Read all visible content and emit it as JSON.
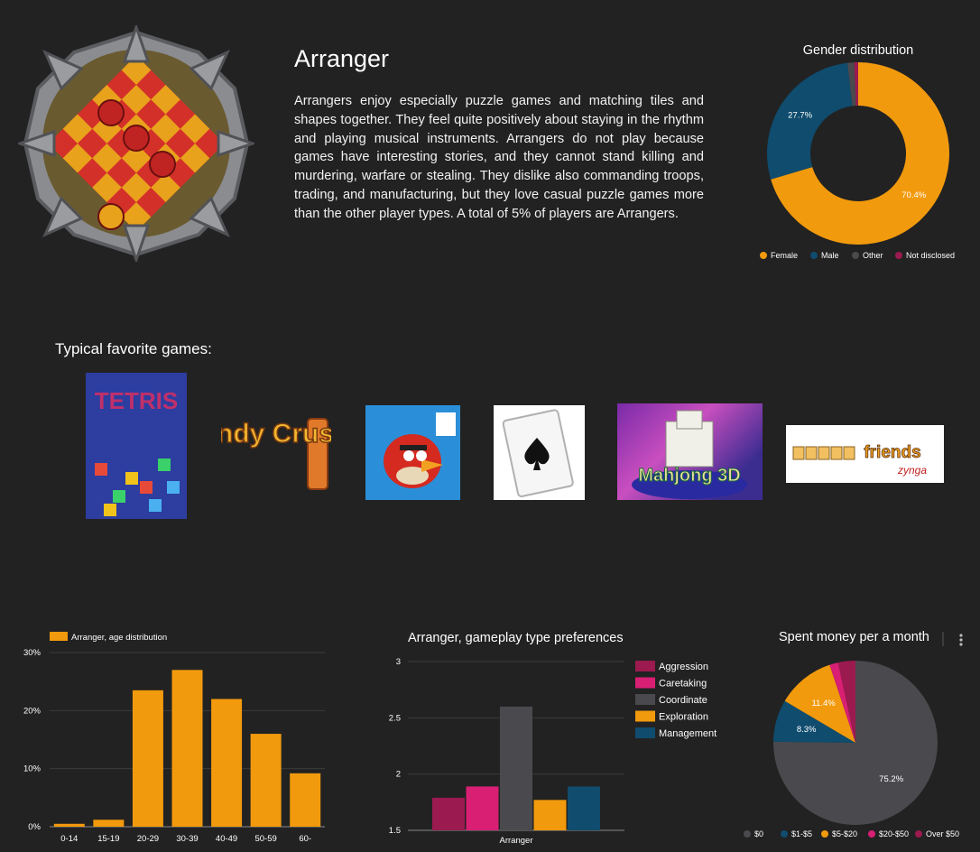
{
  "profile": {
    "name": "Arranger",
    "description": "Arrangers enjoy especially puzzle games and matching tiles and shapes together. They feel quite positively about staying in the rhythm and playing musical instruments. Arrangers do not play because games have interesting stories, and they cannot stand killing and murdering, warfare or stealing. They dislike also commanding troops, trading, and manufacturing, but they love casual puzzle games more than the other player types. A total of 5% of players are Arrangers."
  },
  "favorites": {
    "title": "Typical favorite games:",
    "games": [
      {
        "name": "Tetris",
        "logo_text": "TETRIS"
      },
      {
        "name": "Candy Crush Saga",
        "logo_text": "Candy Crush"
      },
      {
        "name": "Angry Birds",
        "logo_text": ""
      },
      {
        "name": "Solitaire",
        "logo_text": ""
      },
      {
        "name": "Mahjong 3D",
        "logo_text": "Mahjong 3D"
      },
      {
        "name": "Words with Friends",
        "logo_text": "WORDS with friends zynga"
      }
    ]
  },
  "chart_data": [
    {
      "type": "pie",
      "title": "Gender distribution",
      "donut": true,
      "categories": [
        "Female",
        "Male",
        "Other",
        "Not disclosed"
      ],
      "values": [
        70.4,
        27.7,
        1.2,
        0.7
      ],
      "value_labels": [
        "70.4%",
        "27.7%",
        "",
        ""
      ],
      "colors": [
        "#f29a0d",
        "#0f4c6e",
        "#4a4a4e",
        "#9b1a4f"
      ],
      "legend": "bottom"
    },
    {
      "type": "bar",
      "title": "",
      "series": [
        {
          "name": "Arranger, age distribution",
          "values": [
            0.5,
            1.2,
            23.5,
            27,
            22,
            16,
            9.2
          ]
        }
      ],
      "categories": [
        "0-14",
        "15-19",
        "20-29",
        "30-39",
        "40-49",
        "50-59",
        "60-"
      ],
      "ylim": [
        0,
        30
      ],
      "yticks": [
        "0%",
        "10%",
        "20%",
        "30%"
      ],
      "color": "#f29a0d",
      "legend": "top-left"
    },
    {
      "type": "bar",
      "title": "Arranger, gameplay type preferences",
      "categories": [
        "Arranger"
      ],
      "series": [
        {
          "name": "Aggression",
          "values": [
            1.79
          ],
          "color": "#9b1a4f"
        },
        {
          "name": "Caretaking",
          "values": [
            1.89
          ],
          "color": "#d81f73"
        },
        {
          "name": "Coordinate",
          "values": [
            2.6
          ],
          "color": "#4a4a4e"
        },
        {
          "name": "Exploration",
          "values": [
            1.77
          ],
          "color": "#f29a0d"
        },
        {
          "name": "Management",
          "values": [
            1.89
          ],
          "color": "#0f4c6e"
        }
      ],
      "ylim": [
        1.5,
        3
      ],
      "yticks": [
        "1.5",
        "2",
        "2.5",
        "3"
      ],
      "legend": "right"
    },
    {
      "type": "pie",
      "title": "Spent money per a month",
      "categories": [
        "$0",
        "$1-$5",
        "$5-$20",
        "$20-$50",
        "Over $50"
      ],
      "values": [
        75.2,
        8.3,
        11.4,
        1.7,
        3.4
      ],
      "value_labels": [
        "75.2%",
        "8.3%",
        "11.4%",
        "",
        ""
      ],
      "colors": [
        "#4a4a4e",
        "#0f4c6e",
        "#f29a0d",
        "#d81f73",
        "#9b1a4f"
      ],
      "legend": "bottom"
    }
  ]
}
